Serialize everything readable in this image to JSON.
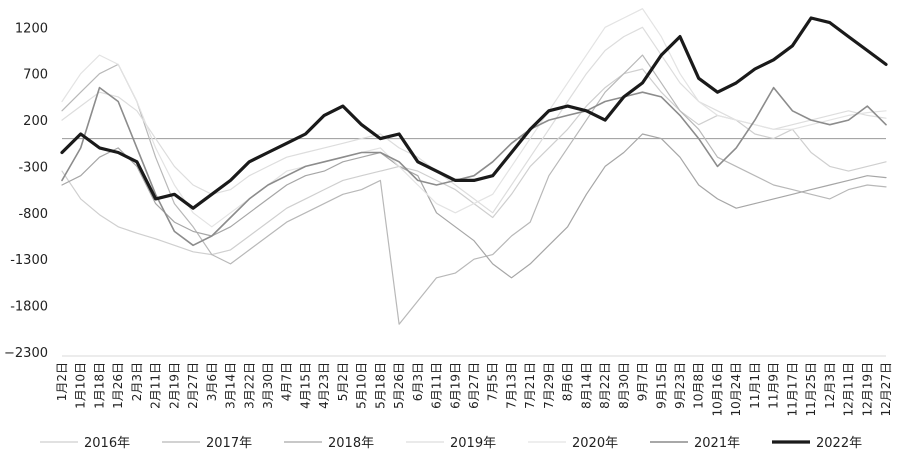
{
  "chart_data": {
    "type": "line",
    "title": "",
    "xlabel": "",
    "ylabel": "",
    "ylim": [
      -2300,
      1300
    ],
    "yticks": [
      1200,
      700,
      200,
      -300,
      -800,
      -1300,
      -1800,
      -2300
    ],
    "ytick_labels": [
      "1200",
      "700",
      "200",
      "-300",
      "-800",
      "-1300",
      "-1800",
      "−2300"
    ],
    "reference_line": 0,
    "grid": false,
    "legend_position": "bottom",
    "x_labels": [
      "1月2日",
      "1月10日",
      "1月18日",
      "1月26日",
      "2月3日",
      "2月11日",
      "2月19日",
      "2月27日",
      "3月6日",
      "3月14日",
      "3月22日",
      "3月30日",
      "4月7日",
      "4月15日",
      "4月23日",
      "5月2日",
      "5月10日",
      "5月18日",
      "5月26日",
      "6月3日",
      "6月11日",
      "6月19日",
      "6月27日",
      "7月5日",
      "7月13日",
      "7月21日",
      "7月29日",
      "8月6日",
      "8月14日",
      "8月22日",
      "8月30日",
      "9月7日",
      "9月15日",
      "9月23日",
      "10月8日",
      "10月16日",
      "10月24日",
      "11月1日",
      "11月9日",
      "11月17日",
      "11月25日",
      "12月3日",
      "12月11日",
      "12月19日",
      "12月27日"
    ],
    "series": [
      {
        "name": "2016年",
        "color": "#cfcfcf",
        "width": 1.2,
        "values": [
          -350,
          -650,
          -820,
          -950,
          -1020,
          -1080,
          -1150,
          -1220,
          -1250,
          -1200,
          -1050,
          -900,
          -750,
          -650,
          -550,
          -450,
          -400,
          -350,
          -300,
          -350,
          -450,
          -550,
          -700,
          -850,
          -600,
          -300,
          -100,
          100,
          350,
          550,
          700,
          750,
          500,
          300,
          150,
          250,
          200,
          50,
          0,
          100,
          -150,
          -300,
          -350,
          -300,
          -250
        ]
      },
      {
        "name": "2017年",
        "color": "#b8b8b8",
        "width": 1.2,
        "values": [
          300,
          500,
          700,
          800,
          400,
          -200,
          -700,
          -950,
          -1250,
          -1350,
          -1200,
          -1050,
          -900,
          -800,
          -700,
          -600,
          -550,
          -450,
          -2000,
          -1750,
          -1500,
          -1450,
          -1300,
          -1250,
          -1050,
          -900,
          -400,
          -100,
          200,
          500,
          700,
          900,
          600,
          300,
          100,
          -200,
          -300,
          -400,
          -500,
          -550,
          -600,
          -650,
          -550,
          -500,
          -520
        ]
      },
      {
        "name": "2018年",
        "color": "#a6a6a6",
        "width": 1.2,
        "values": [
          -500,
          -400,
          -200,
          -100,
          -300,
          -700,
          -900,
          -1000,
          -1050,
          -950,
          -800,
          -650,
          -500,
          -400,
          -350,
          -250,
          -200,
          -150,
          -300,
          -400,
          -800,
          -950,
          -1100,
          -1350,
          -1500,
          -1350,
          -1150,
          -950,
          -600,
          -300,
          -150,
          50,
          0,
          -200,
          -500,
          -650,
          -750,
          -700,
          -650,
          -600,
          -550,
          -500,
          -450,
          -400,
          -420
        ]
      },
      {
        "name": "2019年",
        "color": "#dddddd",
        "width": 1.2,
        "values": [
          200,
          350,
          500,
          450,
          300,
          0,
          -300,
          -500,
          -600,
          -550,
          -400,
          -300,
          -200,
          -150,
          -100,
          -50,
          0,
          50,
          -100,
          -200,
          -350,
          -500,
          -650,
          -800,
          -500,
          -200,
          100,
          400,
          700,
          950,
          1100,
          1200,
          900,
          600,
          400,
          300,
          200,
          150,
          100,
          150,
          200,
          250,
          300,
          250,
          220
        ]
      },
      {
        "name": "2020年",
        "color": "#e3e3e3",
        "width": 1.2,
        "values": [
          400,
          700,
          900,
          800,
          400,
          -100,
          -500,
          -800,
          -950,
          -800,
          -650,
          -500,
          -350,
          -300,
          -250,
          -200,
          -150,
          -100,
          -300,
          -500,
          -700,
          -800,
          -700,
          -600,
          -300,
          0,
          300,
          600,
          900,
          1200,
          1300,
          1400,
          1100,
          700,
          400,
          250,
          200,
          150,
          100,
          100,
          150,
          200,
          250,
          280,
          300
        ]
      },
      {
        "name": "2021年",
        "color": "#8c8c8c",
        "width": 1.6,
        "values": [
          -450,
          -100,
          550,
          400,
          -100,
          -600,
          -1000,
          -1150,
          -1050,
          -850,
          -650,
          -500,
          -400,
          -300,
          -250,
          -200,
          -150,
          -150,
          -250,
          -450,
          -500,
          -450,
          -400,
          -250,
          -50,
          100,
          200,
          250,
          300,
          400,
          450,
          500,
          450,
          250,
          0,
          -300,
          -100,
          200,
          550,
          300,
          200,
          150,
          200,
          350,
          150
        ]
      },
      {
        "name": "2022年",
        "color": "#1a1a1a",
        "width": 3.2,
        "values": [
          -150,
          50,
          -100,
          -150,
          -250,
          -650,
          -600,
          -750,
          -600,
          -450,
          -250,
          -150,
          -50,
          50,
          250,
          350,
          150,
          0,
          50,
          -250,
          -350,
          -450,
          -450,
          -400,
          -150,
          100,
          300,
          350,
          300,
          200,
          450,
          600,
          900,
          1100,
          650,
          500,
          600,
          750,
          850,
          1000,
          1300,
          1250,
          1100,
          950,
          800
        ]
      }
    ]
  }
}
